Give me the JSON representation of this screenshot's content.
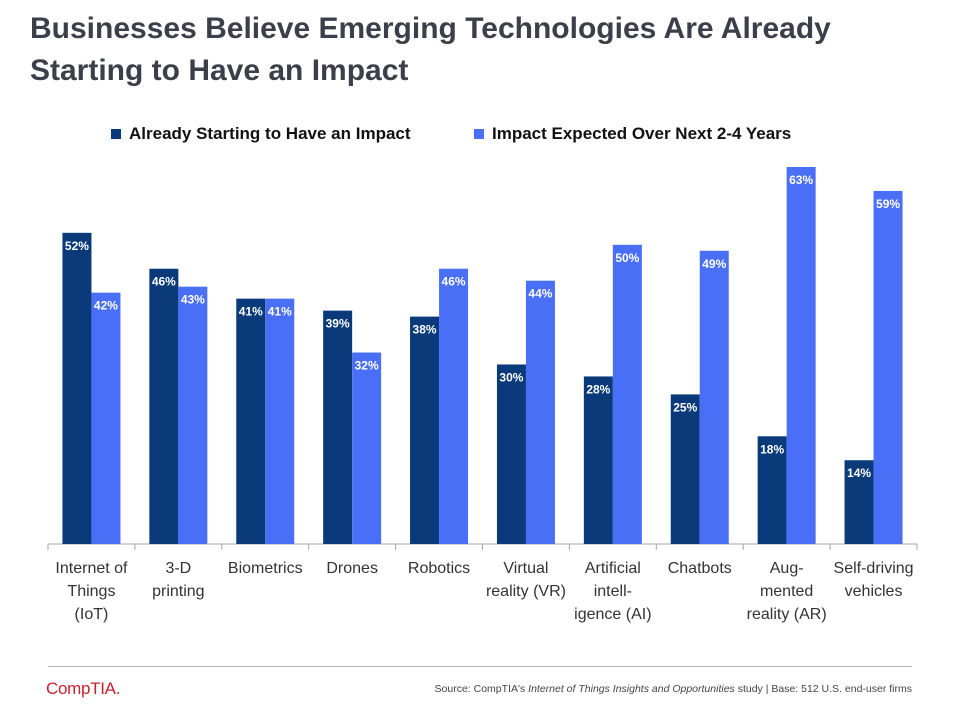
{
  "title_line1": "Businesses Believe Emerging Technologies Are Already",
  "title_line2": "Starting to Have an Impact",
  "chart_data": {
    "type": "bar",
    "title": "Businesses Believe Emerging Technologies Are Already Starting to Have an Impact",
    "categories": [
      "Internet of Things (IoT)",
      "3-D printing",
      "Biometrics",
      "Drones",
      "Robotics",
      "Virtual reality (VR)",
      "Artificial intelligence (AI)",
      "Chatbots",
      "Augmented reality (AR)",
      "Self-driving vehicles"
    ],
    "category_label_lines": [
      [
        "Internet of",
        "Things",
        "(IoT)"
      ],
      [
        "3-D",
        "printing"
      ],
      [
        "Biometrics"
      ],
      [
        "Drones"
      ],
      [
        "Robotics"
      ],
      [
        "Virtual",
        "reality (VR)"
      ],
      [
        "Artificial",
        "intell-",
        "igence (AI)"
      ],
      [
        "Chatbots"
      ],
      [
        "Aug-",
        "mented",
        "reality (AR)"
      ],
      [
        "Self-driving",
        "vehicles"
      ]
    ],
    "series": [
      {
        "name": "Already Starting to Have an Impact",
        "color": "#0a3a7a",
        "values": [
          52,
          46,
          41,
          39,
          38,
          30,
          28,
          25,
          18,
          14
        ]
      },
      {
        "name": "Impact Expected Over Next 2-4 Years",
        "color": "#4a6ff7",
        "values": [
          42,
          43,
          41,
          32,
          46,
          44,
          50,
          49,
          63,
          59
        ]
      }
    ],
    "value_suffix": "%",
    "ylim": [
      0,
      63
    ],
    "grid": false,
    "legend_position": "top"
  },
  "footer": {
    "logo": "CompTIA.",
    "source_prefix": "Source: CompTIA's ",
    "source_study": "Internet of Things Insights and Opportunities",
    "source_suffix": " study | Base: 512 U.S. end-user firms"
  }
}
